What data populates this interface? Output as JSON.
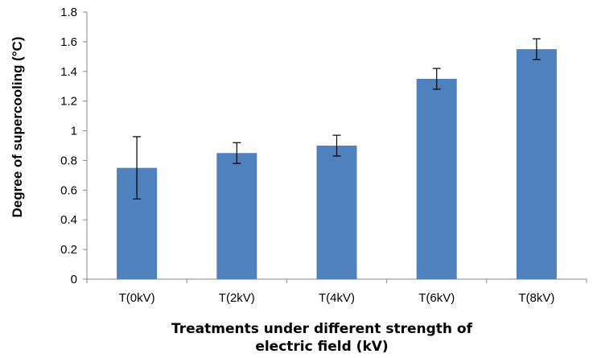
{
  "chart_data": {
    "type": "bar",
    "categories": [
      "T(0kV)",
      "T(2kV)",
      "T(4kV)",
      "T(6kV)",
      "T(8kV)"
    ],
    "values": [
      0.75,
      0.85,
      0.9,
      1.35,
      1.55
    ],
    "error_low": [
      0.54,
      0.78,
      0.83,
      1.28,
      1.48
    ],
    "error_high": [
      0.96,
      0.92,
      0.97,
      1.42,
      1.62
    ],
    "ylabel": "Degree of supercooling (°C)",
    "xlabel_line1": "Treatments under different strength of",
    "xlabel_line2": "electric field (kV)",
    "ylim": [
      0,
      1.8
    ],
    "yticks": [
      "0",
      "0.2",
      "0.4",
      "0.6",
      "0.8",
      "1",
      "1.2",
      "1.4",
      "1.6",
      "1.8"
    ],
    "bar_color": "#4f81bd",
    "grid": false,
    "legend": "none"
  }
}
